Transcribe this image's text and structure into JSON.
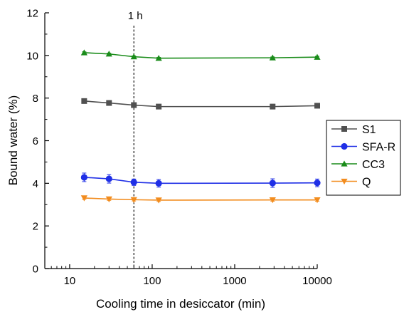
{
  "chart_data": {
    "type": "line",
    "title": "",
    "xlabel": "Cooling time in desiccator (min)",
    "ylabel": "Bound water (%)",
    "xscale": "log",
    "xlim": [
      5,
      10000
    ],
    "ylim": [
      0,
      12
    ],
    "xticks": [
      10,
      100,
      1000,
      10000
    ],
    "xtick_labels": [
      "10",
      "100",
      "1000",
      "10000"
    ],
    "yticks": [
      0,
      2,
      4,
      6,
      8,
      10,
      12
    ],
    "ytick_labels": [
      "0",
      "2",
      "4",
      "6",
      "8",
      "10",
      "12"
    ],
    "grid": false,
    "legend_position": "right",
    "x": [
      15,
      30,
      60,
      120,
      2880,
      10000
    ],
    "series": [
      {
        "name": "S1",
        "marker": "square",
        "color": "#505050",
        "values": [
          7.86,
          7.77,
          7.67,
          7.6,
          7.6,
          7.64
        ],
        "errors": [
          0.05,
          0.05,
          0.05,
          0.05,
          0.05,
          0.05
        ]
      },
      {
        "name": "SFA-R",
        "marker": "circle",
        "color": "#1f2fe6",
        "values": [
          4.28,
          4.21,
          4.05,
          4.0,
          4.01,
          4.02
        ],
        "errors": [
          0.2,
          0.2,
          0.15,
          0.18,
          0.2,
          0.18
        ]
      },
      {
        "name": "CC3",
        "marker": "triangle-up",
        "color": "#1a8c1a",
        "values": [
          10.13,
          10.07,
          9.94,
          9.87,
          9.89,
          9.92
        ],
        "errors": [
          0.04,
          0.04,
          0.04,
          0.04,
          0.04,
          0.04
        ]
      },
      {
        "name": "Q",
        "marker": "triangle-down",
        "color": "#f28c1e",
        "values": [
          3.31,
          3.26,
          3.23,
          3.21,
          3.22,
          3.22
        ],
        "errors": [
          0.06,
          0.06,
          0.06,
          0.06,
          0.06,
          0.06
        ]
      }
    ],
    "annotations": [
      {
        "text": "1 h",
        "x": 60,
        "style": "dashed-vertical-line"
      }
    ]
  }
}
